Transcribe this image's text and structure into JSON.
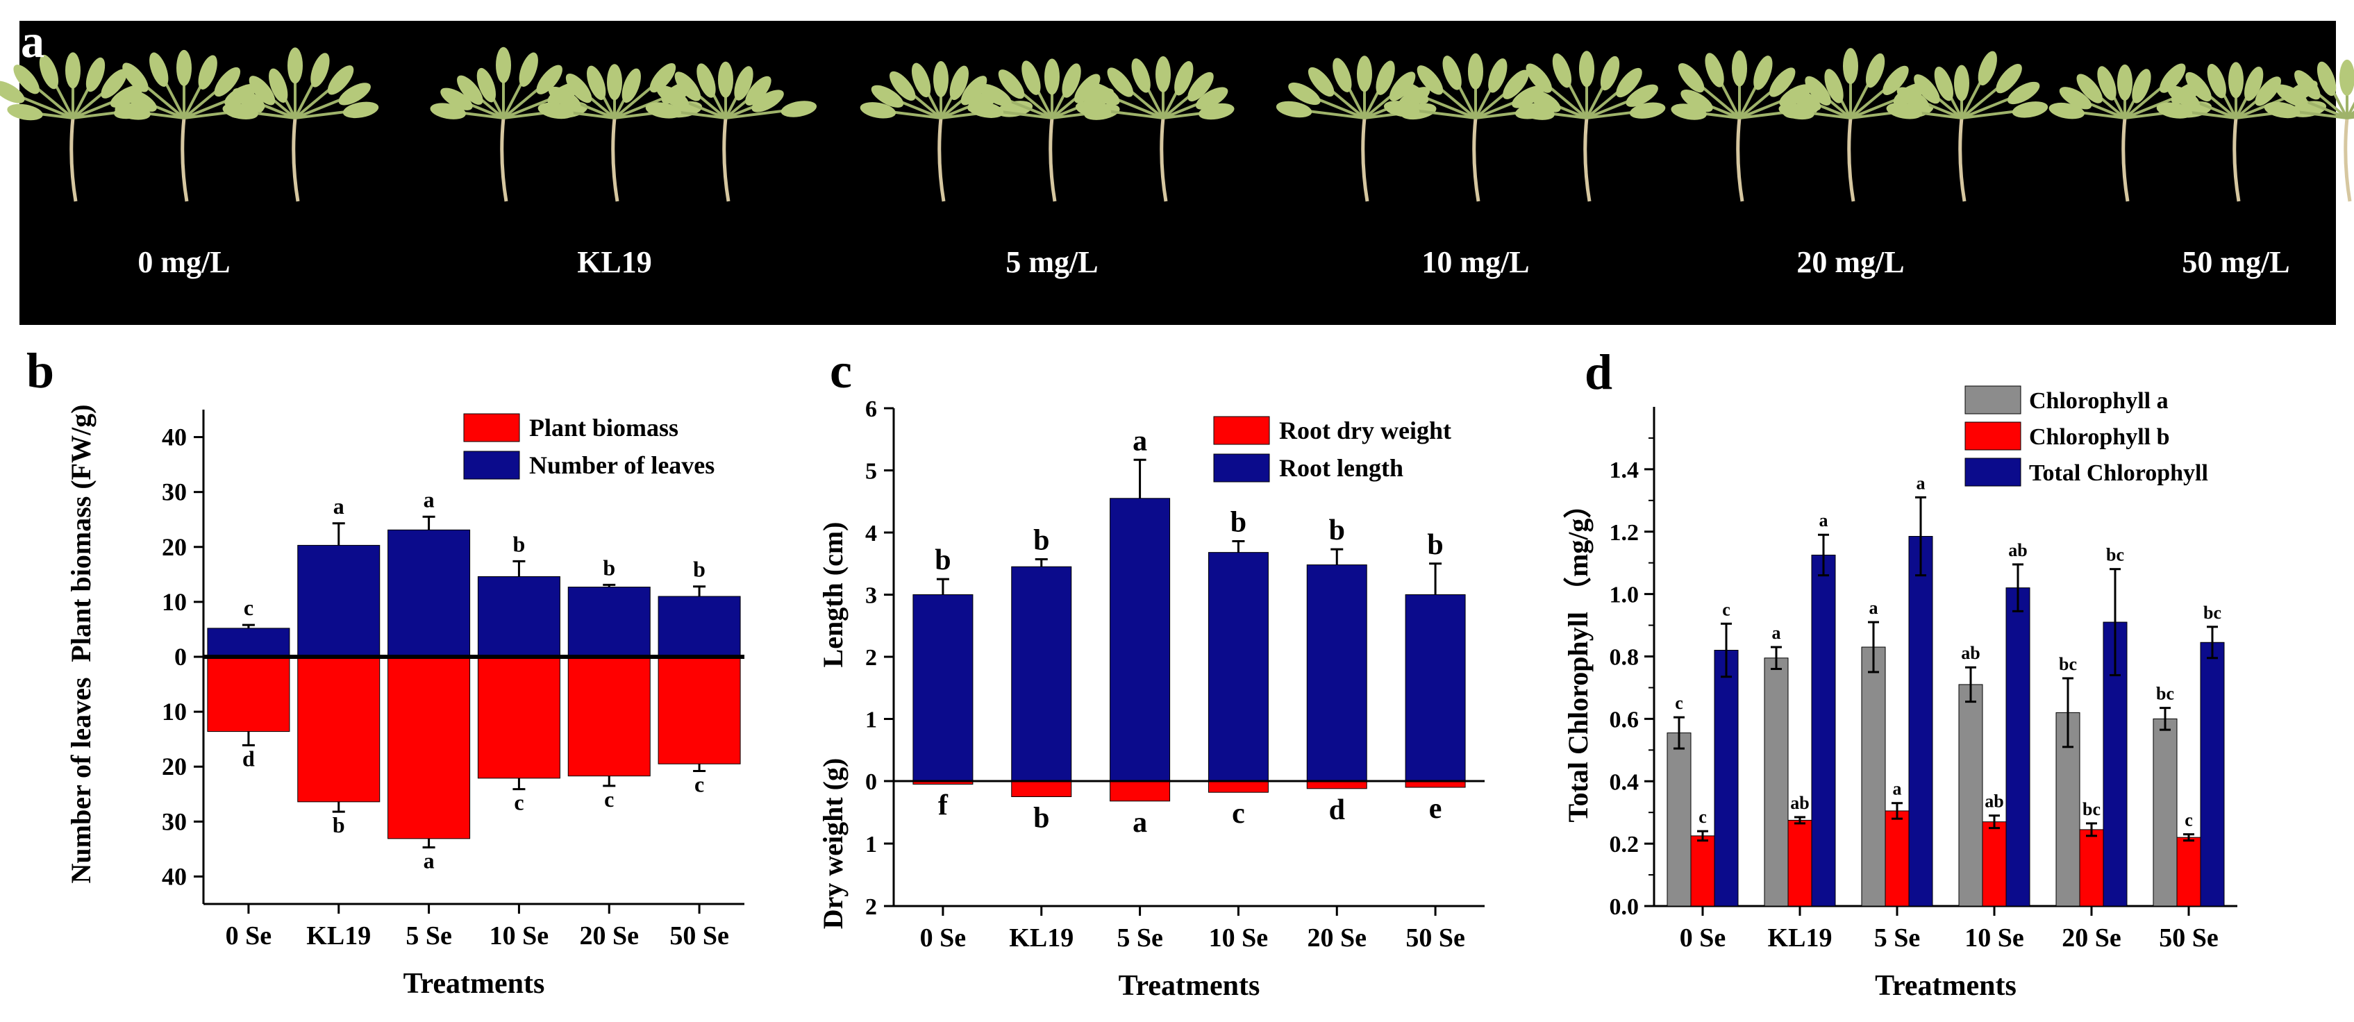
{
  "colors": {
    "red": "#ff0000",
    "navy": "#0b0b8c",
    "gray": "#8c8c8c",
    "black": "#000000",
    "photo_bg": "#000000",
    "leaf": "#b5c97a"
  },
  "panel_a": {
    "letter": "a",
    "labels": [
      "0 mg/L",
      "KL19",
      "5 mg/L",
      "10 mg/L",
      "20 mg/L",
      "50 mg/L"
    ]
  },
  "chart_data": [
    {
      "id": "b",
      "letter": "b",
      "type": "bar",
      "xlabel": "Treatments",
      "ylabel_top": "Plant biomass (FW/g)",
      "ylabel_bottom": "Number of leaves",
      "categories": [
        "0 Se",
        "KL19",
        "5 Se",
        "10 Se",
        "20 Se",
        "50 Se"
      ],
      "up": {
        "name": "Number of leaves",
        "color": "#0b0b8c",
        "values": [
          5.2,
          20.3,
          23.1,
          14.6,
          12.7,
          11.0
        ],
        "errors": [
          0.6,
          4.0,
          2.4,
          2.8,
          0.4,
          1.8
        ],
        "letters": [
          "c",
          "a",
          "a",
          "b",
          "b",
          "b"
        ]
      },
      "down": {
        "name": "Plant biomass",
        "color": "#ff0000",
        "values": [
          13.6,
          26.4,
          33.1,
          22.1,
          21.7,
          19.5
        ],
        "errors": [
          2.5,
          1.8,
          1.6,
          2.0,
          1.8,
          1.3
        ],
        "letters": [
          "d",
          "b",
          "a",
          "c",
          "c",
          "c"
        ]
      },
      "ylim_top": [
        0,
        45
      ],
      "ylim_bottom": [
        0,
        45
      ],
      "ticks_top": [
        "10",
        "20",
        "30",
        "40"
      ],
      "ticks_bottom": [
        "10",
        "20",
        "30",
        "40"
      ],
      "zero_label": "0",
      "legend": [
        "Plant biomass",
        "Number of leaves"
      ],
      "legend_colors": [
        "#ff0000",
        "#0b0b8c"
      ],
      "legend_position": "top-right"
    },
    {
      "id": "c",
      "letter": "c",
      "type": "bar",
      "xlabel": "Treatments",
      "ylabel_top": "Length (cm)",
      "ylabel_bottom": "Dry weight (g)",
      "categories": [
        "0 Se",
        "KL19",
        "5 Se",
        "10 Se",
        "20 Se",
        "50 Se"
      ],
      "up": {
        "name": "Root length",
        "color": "#0b0b8c",
        "values": [
          3.0,
          3.45,
          4.55,
          3.68,
          3.48,
          3.0
        ],
        "errors": [
          0.25,
          0.12,
          0.62,
          0.18,
          0.25,
          0.5
        ],
        "letters": [
          "b",
          "b",
          "a",
          "b",
          "b",
          "b"
        ]
      },
      "down": {
        "name": "Root dry weight",
        "color": "#ff0000",
        "values": [
          0.05,
          0.25,
          0.32,
          0.18,
          0.12,
          0.1
        ],
        "errors": [
          0.0,
          0.0,
          0.0,
          0.0,
          0.0,
          0.0
        ],
        "letters": [
          "f",
          "b",
          "a",
          "c",
          "d",
          "e"
        ]
      },
      "ylim_top": [
        0,
        6
      ],
      "ylim_bottom": [
        0,
        2
      ],
      "ticks_top": [
        "1",
        "2",
        "3",
        "4",
        "5",
        "6"
      ],
      "ticks_bottom": [
        "1",
        "2"
      ],
      "zero_label": "0",
      "legend": [
        "Root dry weight",
        "Root length"
      ],
      "legend_colors": [
        "#ff0000",
        "#0b0b8c"
      ],
      "legend_position": "top-right"
    },
    {
      "id": "d",
      "letter": "d",
      "type": "bar",
      "xlabel": "Treatments",
      "ylabel": "Total Chlorophyll （mg/g）",
      "categories": [
        "0 Se",
        "KL19",
        "5 Se",
        "10 Se",
        "20 Se",
        "50 Se"
      ],
      "ylim": [
        0,
        1.6
      ],
      "yticks": [
        "0.0",
        "0.2",
        "0.4",
        "0.6",
        "0.8",
        "1.0",
        "1.2",
        "1.4"
      ],
      "series": [
        {
          "name": "Chlorophyll a",
          "color": "#8c8c8c",
          "values": [
            0.555,
            0.795,
            0.83,
            0.71,
            0.62,
            0.6
          ],
          "errors": [
            0.05,
            0.035,
            0.08,
            0.055,
            0.11,
            0.035
          ],
          "letters": [
            "c",
            "a",
            "a",
            "ab",
            "bc",
            "bc"
          ]
        },
        {
          "name": "Chlorophyll b",
          "color": "#ff0000",
          "values": [
            0.225,
            0.275,
            0.305,
            0.27,
            0.245,
            0.22
          ],
          "errors": [
            0.015,
            0.01,
            0.025,
            0.02,
            0.02,
            0.01
          ],
          "letters": [
            "c",
            "ab",
            "a",
            "ab",
            "bc",
            "c"
          ]
        },
        {
          "name": "Total Chlorophyll",
          "color": "#0b0b8c",
          "values": [
            0.82,
            1.125,
            1.185,
            1.02,
            0.91,
            0.845
          ],
          "errors": [
            0.085,
            0.065,
            0.125,
            0.075,
            0.17,
            0.05
          ],
          "letters": [
            "c",
            "a",
            "a",
            "ab",
            "bc",
            "bc"
          ]
        }
      ],
      "legend_position": "top-right"
    }
  ]
}
